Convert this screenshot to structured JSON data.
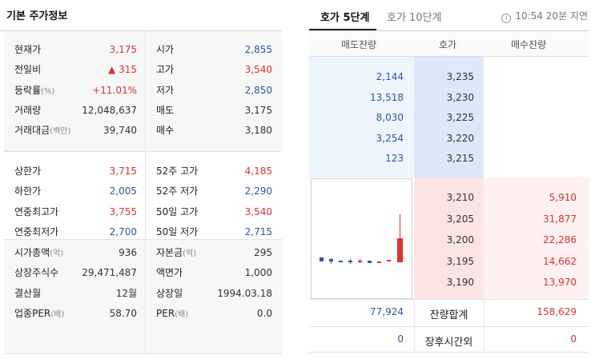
{
  "left_panel": {
    "title": "기본 주가정보",
    "section1": [
      {
        "l1": "현재가",
        "u1": "",
        "v1": "3,175",
        "c1": "red",
        "l2": "시가",
        "u2": "",
        "v2": "2,855",
        "c2": "blue"
      },
      {
        "l1": "전일비",
        "u1": "",
        "v1": "▲ 315",
        "c1": "red",
        "l2": "고가",
        "u2": "",
        "v2": "3,540",
        "c2": "red"
      },
      {
        "l1": "등락률",
        "u1": "(%)",
        "v1": "+11.01%",
        "c1": "red",
        "l2": "저가",
        "u2": "",
        "v2": "2,850",
        "c2": "blue"
      },
      {
        "l1": "거래량",
        "u1": "",
        "v1": "12,048,637",
        "c1": "blk",
        "l2": "매도",
        "u2": "",
        "v2": "3,175",
        "c2": "blk"
      },
      {
        "l1": "거래대금",
        "u1": "(백만)",
        "v1": "39,740",
        "c1": "blk",
        "l2": "매수",
        "u2": "",
        "v2": "3,180",
        "c2": "blk"
      }
    ],
    "section2": [
      {
        "l1": "상한가",
        "u1": "",
        "v1": "3,715",
        "c1": "red",
        "l2": "52주 고가",
        "u2": "",
        "v2": "4,185",
        "c2": "red"
      },
      {
        "l1": "하한가",
        "u1": "",
        "v1": "2,005",
        "c1": "blue",
        "l2": "52주 저가",
        "u2": "",
        "v2": "2,290",
        "c2": "blue"
      },
      {
        "l1": "연중최고가",
        "u1": "",
        "v1": "3,755",
        "c1": "red",
        "l2": "50일 고가",
        "u2": "",
        "v2": "3,540",
        "c2": "red"
      },
      {
        "l1": "연중최저가",
        "u1": "",
        "v1": "2,700",
        "c1": "blue",
        "l2": "50일 저가",
        "u2": "",
        "v2": "2,715",
        "c2": "blue"
      }
    ],
    "section3": [
      {
        "l1": "시가총액",
        "u1": "(억)",
        "v1": "936",
        "c1": "blk",
        "l2": "자본금",
        "u2": "(억)",
        "v2": "295",
        "c2": "blk"
      },
      {
        "l1": "상장주식수",
        "u1": "",
        "v1": "29,471,487",
        "c1": "blk",
        "l2": "액면가",
        "u2": "",
        "v2": "1,000",
        "c2": "blk"
      },
      {
        "l1": "결산월",
        "u1": "",
        "v1": "12월",
        "c1": "blk",
        "l2": "상장일",
        "u2": "",
        "v2": "1994.03.18",
        "c2": "blk"
      },
      {
        "l1": "업종PER",
        "u1": "(배)",
        "v1": "58.70",
        "c1": "blk",
        "l2": "PER",
        "u2": "(배)",
        "v2": "0.0",
        "c2": "blk"
      }
    ]
  },
  "right_panel": {
    "tabs": [
      {
        "label": "호가 5단계",
        "active": true
      },
      {
        "label": "호가 10단계",
        "active": false
      }
    ],
    "delay_info": "10:54 20분 지연",
    "info_icon": "info-icon",
    "headers": {
      "ask": "매도잔량",
      "price": "호가",
      "bid": "매수잔량"
    },
    "asks": [
      {
        "qty": "2,144",
        "price": "3,235"
      },
      {
        "qty": "13,518",
        "price": "3,230"
      },
      {
        "qty": "8,030",
        "price": "3,225"
      },
      {
        "qty": "3,254",
        "price": "3,220"
      },
      {
        "qty": "123",
        "price": "3,215"
      }
    ],
    "bids": [
      {
        "price": "3,210",
        "qty": "5,910"
      },
      {
        "price": "3,205",
        "qty": "31,877"
      },
      {
        "price": "3,200",
        "qty": "22,286"
      },
      {
        "price": "3,195",
        "qty": "14,662"
      },
      {
        "price": "3,190",
        "qty": "13,970"
      }
    ],
    "summary": [
      {
        "ask": "77,924",
        "label": "잔량합계",
        "bid": "158,629"
      },
      {
        "ask": "0",
        "label": "장후시간외",
        "bid": "0"
      }
    ],
    "colors": {
      "up": "#e03131",
      "down": "#2b56a8",
      "ask_bg": "#eef5fd",
      "bid_bg": "#fff1f1"
    }
  }
}
